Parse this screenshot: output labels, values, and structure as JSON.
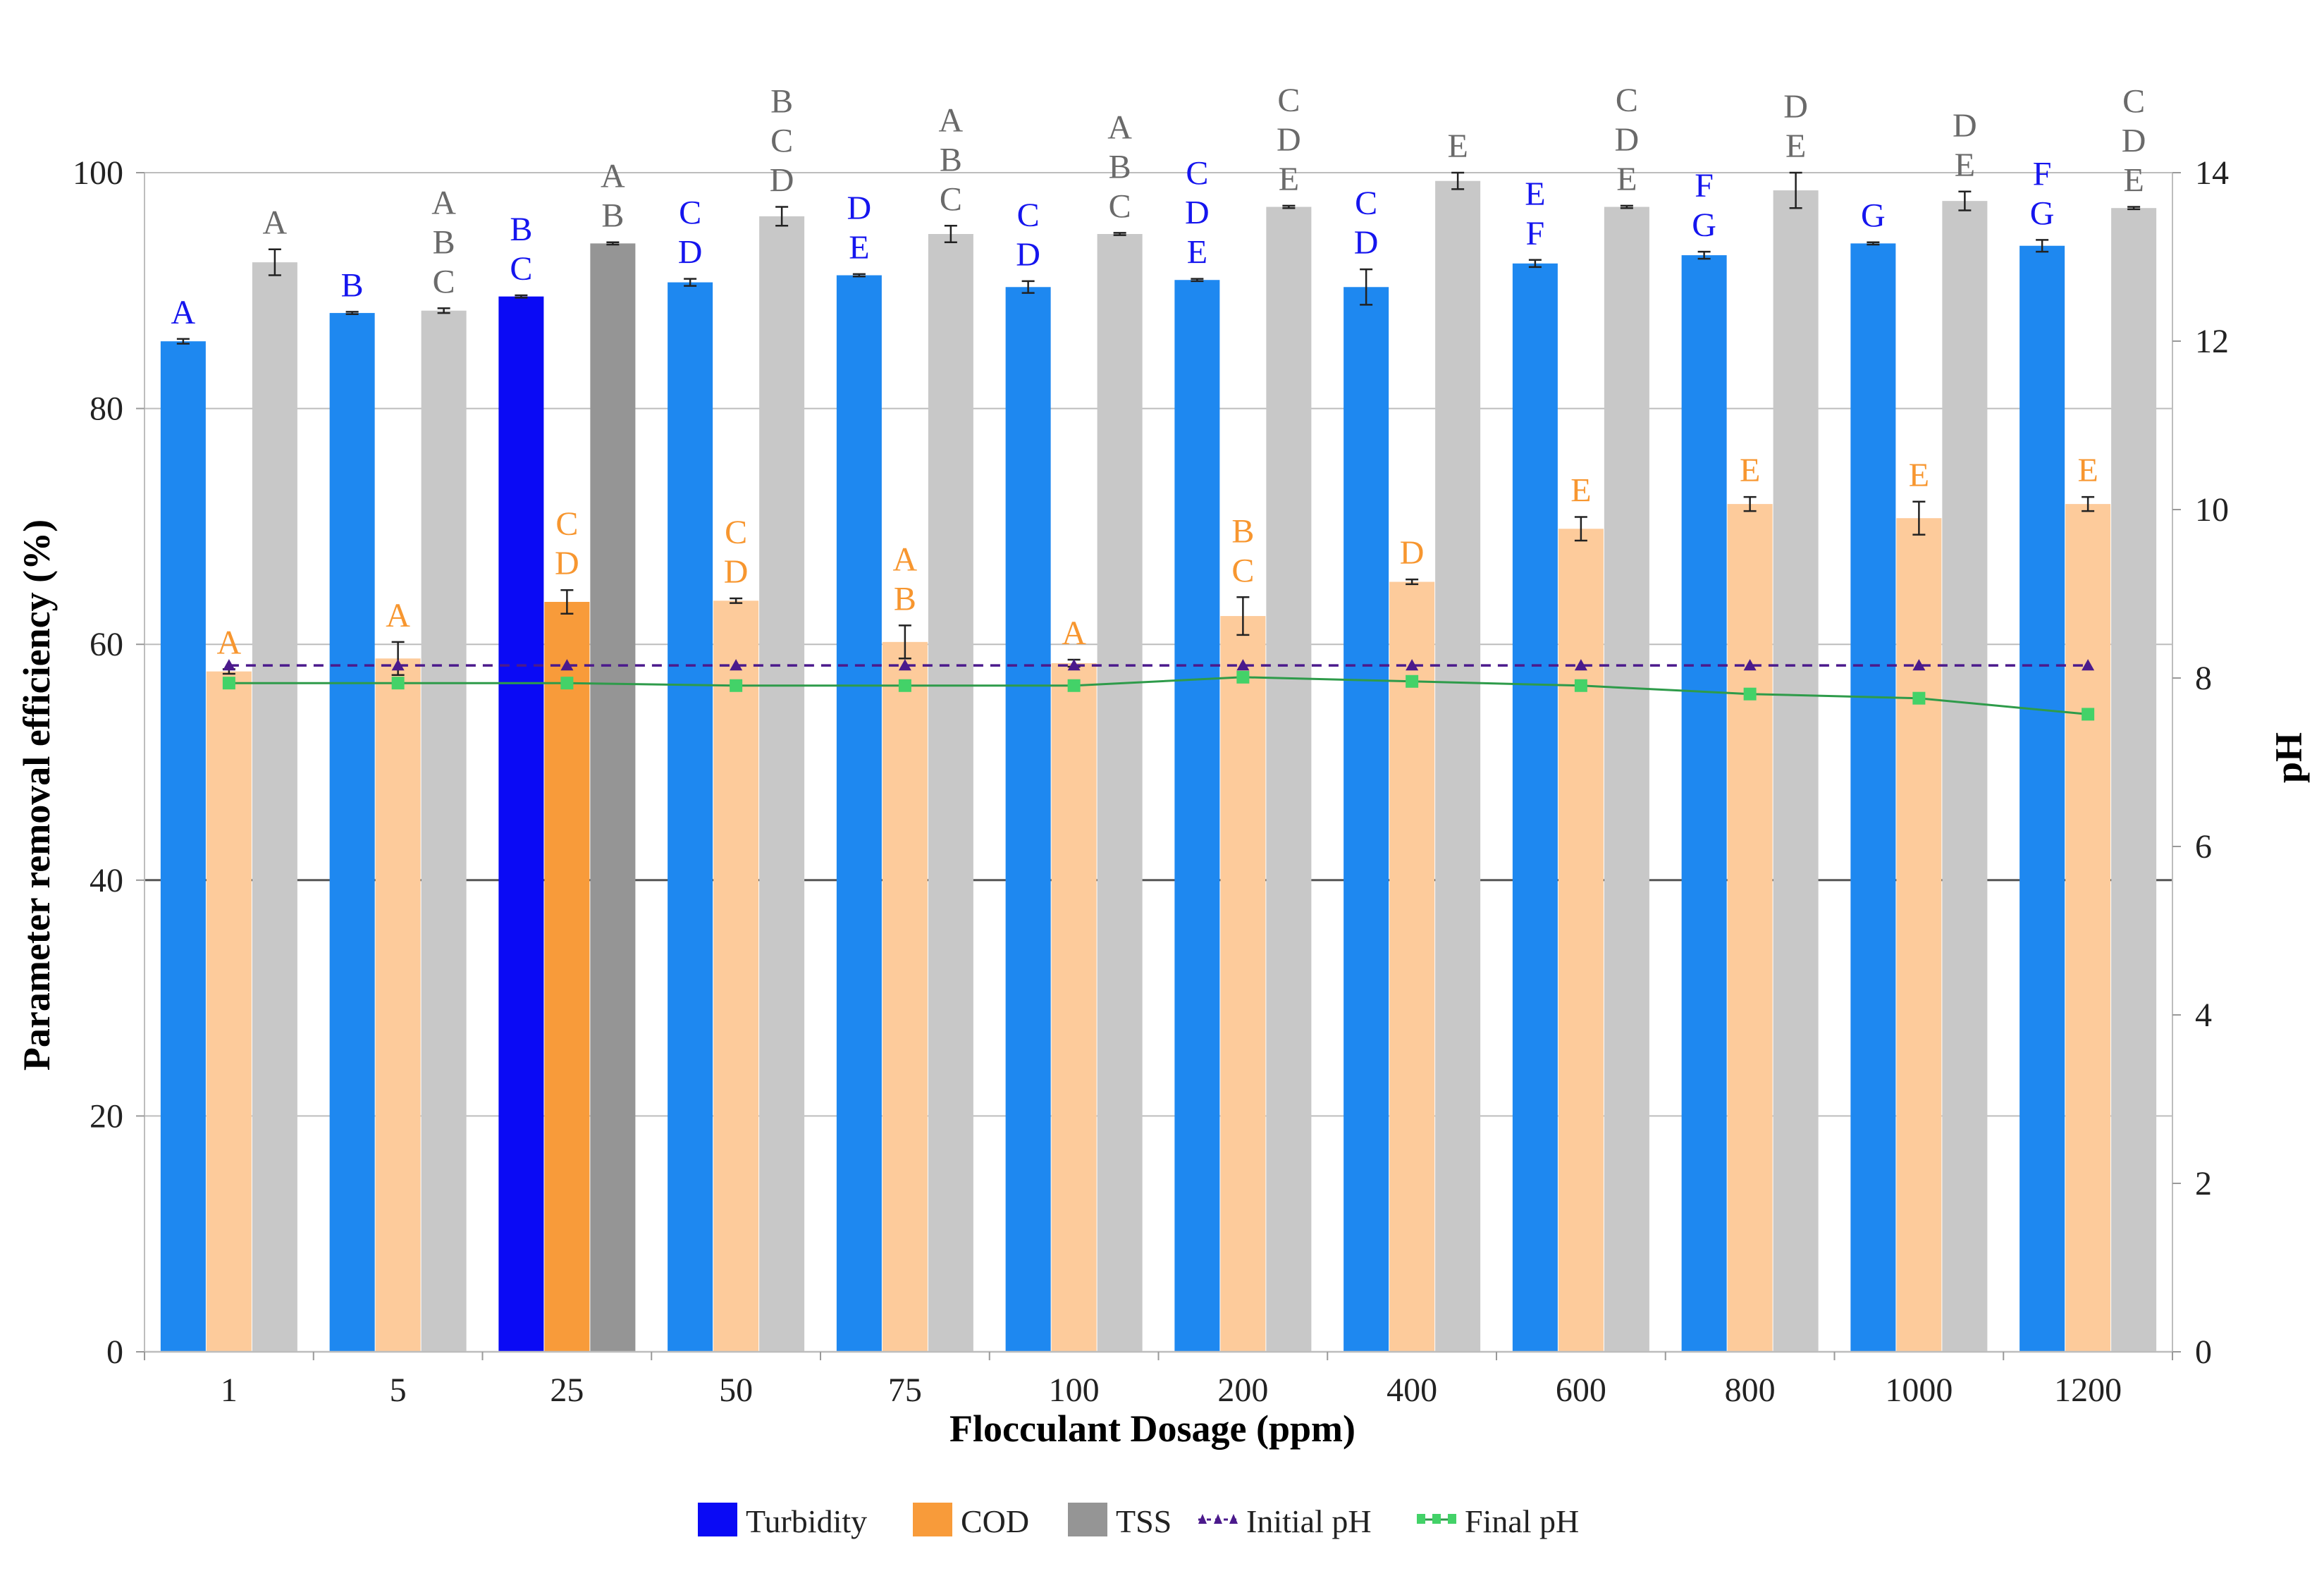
{
  "chart_data": {
    "type": "bar",
    "xlabel": "Flocculant Dosage (ppm)",
    "ylabel": "Parameter removal efficiency (%)",
    "y2label": "pH",
    "ylim": [
      0,
      100
    ],
    "y2lim": [
      0,
      14
    ],
    "yticks": [
      "0",
      "20",
      "40",
      "60",
      "80",
      "100"
    ],
    "y2ticks": [
      "0",
      "2",
      "4",
      "6",
      "8",
      "10",
      "12",
      "14"
    ],
    "categories": [
      "1",
      "5",
      "25",
      "50",
      "75",
      "100",
      "200",
      "400",
      "600",
      "800",
      "1000",
      "1200"
    ],
    "highlight_index": 2,
    "series": [
      {
        "name": "Turbidity",
        "color": "#1e88f0",
        "highlight_color": "#0a0af5",
        "label_color": "#1515ee",
        "values": [
          85.7,
          88.1,
          89.5,
          90.7,
          91.3,
          90.3,
          90.9,
          90.3,
          92.3,
          93.0,
          94.0,
          93.8
        ],
        "errors": [
          0.2,
          0.1,
          0.1,
          0.3,
          0.1,
          0.5,
          0.1,
          1.5,
          0.3,
          0.3,
          0.1,
          0.5
        ],
        "sig": [
          [
            "A"
          ],
          [
            "B"
          ],
          [
            "B",
            "C"
          ],
          [
            "C",
            "D"
          ],
          [
            "D",
            "E"
          ],
          [
            "C",
            "D"
          ],
          [
            "C",
            "D",
            "E"
          ],
          [
            "C",
            "D"
          ],
          [
            "E",
            "F"
          ],
          [
            "F",
            "G"
          ],
          [
            "G"
          ],
          [
            "F",
            "G"
          ]
        ]
      },
      {
        "name": "COD",
        "color": "#fdcb9b",
        "highlight_color": "#f89b3a",
        "label_color": "#f7962f",
        "values": [
          57.7,
          58.8,
          63.6,
          63.7,
          60.2,
          58.4,
          62.4,
          65.3,
          69.8,
          71.9,
          70.7,
          71.9
        ],
        "errors": [
          0.2,
          1.4,
          1.0,
          0.2,
          1.4,
          0.3,
          1.6,
          0.2,
          1.0,
          0.6,
          1.4,
          0.6
        ],
        "sig": [
          [
            "A"
          ],
          [
            "A"
          ],
          [
            "C",
            "D"
          ],
          [
            "C",
            "D"
          ],
          [
            "A",
            "B"
          ],
          [
            "A"
          ],
          [
            "B",
            "C"
          ],
          [
            "D"
          ],
          [
            "E"
          ],
          [
            "E"
          ],
          [
            "E"
          ],
          [
            "E"
          ]
        ]
      },
      {
        "name": "TSS",
        "color": "#c8c8c8",
        "highlight_color": "#959595",
        "label_color": "#6a6a6a",
        "values": [
          92.4,
          88.3,
          94.0,
          96.3,
          94.8,
          94.8,
          97.1,
          99.3,
          97.1,
          98.5,
          97.6,
          97.0
        ],
        "errors": [
          1.1,
          0.2,
          0.1,
          0.8,
          0.7,
          0.1,
          0.1,
          0.7,
          0.1,
          1.5,
          0.8,
          0.1
        ],
        "sig": [
          [
            "A"
          ],
          [
            "A",
            "B",
            "C"
          ],
          [
            "A",
            "B"
          ],
          [
            "B",
            "C",
            "D"
          ],
          [
            "A",
            "B",
            "C"
          ],
          [
            "A",
            "B",
            "C"
          ],
          [
            "C",
            "D",
            "E"
          ],
          [
            "E"
          ],
          [
            "C",
            "D",
            "E"
          ],
          [
            "D",
            "E"
          ],
          [
            "D",
            "E"
          ],
          [
            "C",
            "D",
            "E"
          ]
        ]
      }
    ],
    "line_series": [
      {
        "name": "Initial pH",
        "color": "#4b1a8c",
        "axis": "right",
        "style": "dashed",
        "marker": "triangle",
        "values": [
          8.15,
          8.15,
          8.15,
          8.15,
          8.15,
          8.15,
          8.15,
          8.15,
          8.15,
          8.15,
          8.15,
          8.15
        ]
      },
      {
        "name": "Final pH",
        "color": "#2e9b4a",
        "marker_color": "#43d268",
        "axis": "right",
        "style": "solid",
        "marker": "square",
        "values": [
          7.94,
          7.94,
          7.94,
          7.91,
          7.91,
          7.91,
          8.01,
          7.96,
          7.91,
          7.81,
          7.76,
          7.57
        ]
      }
    ],
    "legend": {
      "position": "bottom-center",
      "items": [
        "Turbidity",
        "COD",
        "TSS",
        "Initial pH",
        "Final pH"
      ]
    }
  }
}
